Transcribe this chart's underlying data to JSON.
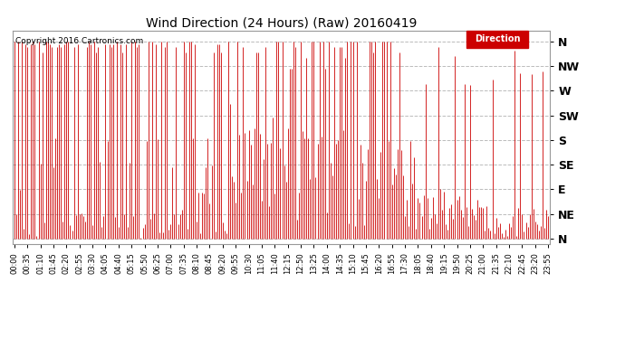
{
  "title": "Wind Direction (24 Hours) (Raw) 20160419",
  "copyright": "Copyright 2016 Cartronics.com",
  "legend_label": "Direction",
  "legend_bg": "#cc0000",
  "legend_text_color": "#ffffff",
  "line_color": "#cc0000",
  "background_color": "#ffffff",
  "grid_color": "#bbbbbb",
  "ytick_labels": [
    "N",
    "NW",
    "W",
    "SW",
    "S",
    "SE",
    "E",
    "NE",
    "N"
  ],
  "ytick_values": [
    360,
    315,
    270,
    225,
    180,
    135,
    90,
    45,
    0
  ],
  "ylim": [
    -10,
    380
  ],
  "num_points": 288,
  "seed": 42
}
